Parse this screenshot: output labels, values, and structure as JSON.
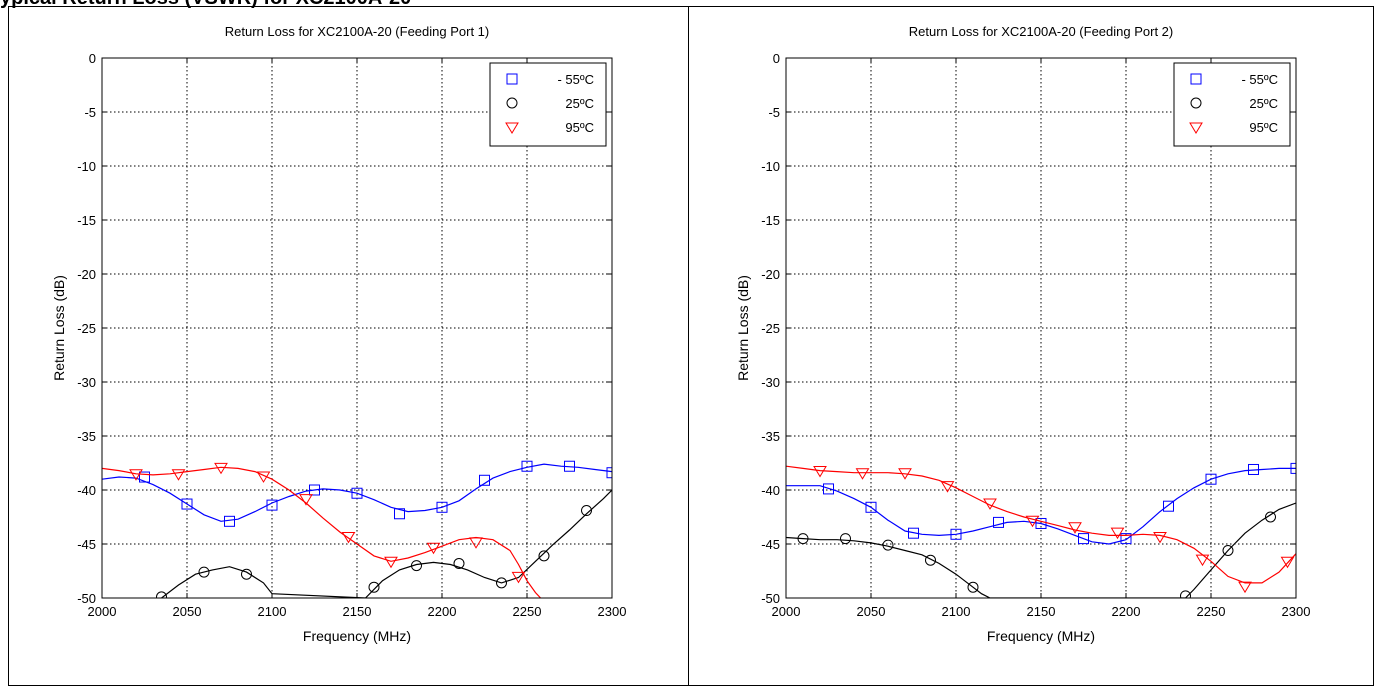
{
  "page": {
    "header_text": "ypical Return Loss (VSWR) for XC2100A-20"
  },
  "chart_data": [
    {
      "type": "line",
      "title": "Return Loss for XC2100A-20 (Feeding Port 1)",
      "xlabel": "Frequency (MHz)",
      "ylabel": "Return Loss (dB)",
      "xlim": [
        2000,
        2300
      ],
      "ylim": [
        -50,
        0
      ],
      "xticks": [
        2000,
        2050,
        2100,
        2150,
        2200,
        2250,
        2300
      ],
      "yticks": [
        0,
        -5,
        -10,
        -15,
        -20,
        -25,
        -30,
        -35,
        -40,
        -45,
        -50
      ],
      "grid": true,
      "legend_position": "top-right",
      "series": [
        {
          "name": "- 55ºC",
          "color": "#0000ff",
          "marker": "square",
          "x": [
            2000,
            2010,
            2020,
            2030,
            2040,
            2050,
            2060,
            2070,
            2080,
            2090,
            2100,
            2110,
            2120,
            2130,
            2140,
            2150,
            2160,
            2170,
            2180,
            2190,
            2200,
            2210,
            2220,
            2230,
            2240,
            2250,
            2260,
            2270,
            2280,
            2290,
            2300
          ],
          "y": [
            -39.0,
            -38.8,
            -38.9,
            -39.5,
            -40.3,
            -41.3,
            -42.3,
            -42.9,
            -42.7,
            -42.0,
            -41.2,
            -40.6,
            -40.1,
            -39.9,
            -40.0,
            -40.3,
            -40.9,
            -41.6,
            -42.0,
            -41.9,
            -41.6,
            -41.0,
            -39.9,
            -38.9,
            -38.3,
            -37.9,
            -37.6,
            -37.8,
            -37.9,
            -38.1,
            -38.3
          ],
          "markers_x": [
            2025,
            2050,
            2075,
            2100,
            2125,
            2150,
            2175,
            2200,
            2225,
            2250,
            2275,
            2300
          ],
          "markers_y": [
            -38.8,
            -41.3,
            -42.9,
            -41.4,
            -40.0,
            -40.3,
            -42.2,
            -41.6,
            -39.1,
            -37.8,
            -37.8,
            -38.4
          ]
        },
        {
          "name": "25ºC",
          "color": "#000000",
          "marker": "circle",
          "x": [
            2035,
            2045,
            2055,
            2065,
            2075,
            2085,
            2095,
            2100,
            2155,
            2165,
            2175,
            2185,
            2195,
            2205,
            2215,
            2225,
            2235,
            2245,
            2255,
            2265,
            2275,
            2285,
            2295,
            2300
          ],
          "y": [
            -50.0,
            -48.8,
            -47.8,
            -47.4,
            -47.1,
            -47.6,
            -48.6,
            -49.6,
            -50.0,
            -48.4,
            -47.4,
            -46.9,
            -46.7,
            -46.9,
            -47.4,
            -48.1,
            -48.6,
            -48.1,
            -46.6,
            -45.1,
            -43.7,
            -42.2,
            -40.8,
            -40.0
          ],
          "markers_x": [
            2035,
            2060,
            2085,
            2160,
            2185,
            2210,
            2235,
            2260,
            2285
          ],
          "markers_y": [
            -49.9,
            -47.6,
            -47.8,
            -49.0,
            -47.0,
            -46.8,
            -48.6,
            -46.1,
            -41.9
          ]
        },
        {
          "name": "95ºC",
          "color": "#ff0000",
          "marker": "triangle",
          "x": [
            2000,
            2010,
            2020,
            2030,
            2040,
            2050,
            2060,
            2070,
            2080,
            2090,
            2100,
            2110,
            2120,
            2130,
            2140,
            2150,
            2160,
            2170,
            2180,
            2190,
            2200,
            2210,
            2220,
            2230,
            2240,
            2245,
            2250,
            2255,
            2258
          ],
          "y": [
            -38.0,
            -38.2,
            -38.5,
            -38.6,
            -38.5,
            -38.3,
            -38.1,
            -37.9,
            -38.0,
            -38.3,
            -39.0,
            -40.0,
            -41.2,
            -42.6,
            -43.9,
            -45.0,
            -46.1,
            -46.6,
            -46.3,
            -45.8,
            -45.2,
            -44.6,
            -44.4,
            -44.6,
            -45.6,
            -46.9,
            -48.4,
            -49.5,
            -50.0
          ],
          "markers_x": [
            2020,
            2045,
            2070,
            2095,
            2120,
            2145,
            2170,
            2195,
            2220,
            2245
          ],
          "markers_y": [
            -38.5,
            -38.5,
            -37.9,
            -38.7,
            -40.8,
            -44.3,
            -46.6,
            -45.3,
            -44.8,
            -48.0
          ]
        }
      ]
    },
    {
      "type": "line",
      "title": "Return Loss for XC2100A-20 (Feeding Port 2)",
      "xlabel": "Frequency (MHz)",
      "ylabel": "Return Loss (dB)",
      "xlim": [
        2000,
        2300
      ],
      "ylim": [
        -50,
        0
      ],
      "xticks": [
        2000,
        2050,
        2100,
        2150,
        2200,
        2250,
        2300
      ],
      "yticks": [
        0,
        -5,
        -10,
        -15,
        -20,
        -25,
        -30,
        -35,
        -40,
        -45,
        -50
      ],
      "grid": true,
      "legend_position": "top-right",
      "series": [
        {
          "name": "- 55ºC",
          "color": "#0000ff",
          "marker": "square",
          "x": [
            2000,
            2010,
            2020,
            2030,
            2040,
            2050,
            2060,
            2070,
            2080,
            2090,
            2100,
            2110,
            2120,
            2130,
            2140,
            2150,
            2160,
            2170,
            2180,
            2190,
            2200,
            2210,
            2220,
            2230,
            2240,
            2250,
            2260,
            2270,
            2280,
            2290,
            2300
          ],
          "y": [
            -39.6,
            -39.6,
            -39.6,
            -40.1,
            -40.8,
            -41.6,
            -42.8,
            -43.8,
            -44.1,
            -44.2,
            -44.1,
            -43.8,
            -43.4,
            -43.0,
            -42.9,
            -43.1,
            -43.6,
            -44.2,
            -44.8,
            -45.0,
            -44.6,
            -43.4,
            -42.0,
            -40.8,
            -39.8,
            -39.0,
            -38.5,
            -38.2,
            -38.1,
            -38.0,
            -38.0
          ],
          "markers_x": [
            2025,
            2050,
            2075,
            2100,
            2125,
            2150,
            2175,
            2200,
            2225,
            2250,
            2275,
            2300
          ],
          "markers_y": [
            -39.9,
            -41.6,
            -44.0,
            -44.1,
            -43.0,
            -43.1,
            -44.5,
            -44.5,
            -41.5,
            -39.0,
            -38.1,
            -38.0
          ]
        },
        {
          "name": "25ºC",
          "color": "#000000",
          "marker": "circle",
          "x": [
            2000,
            2010,
            2020,
            2030,
            2040,
            2050,
            2060,
            2070,
            2080,
            2090,
            2100,
            2110,
            2115,
            2120,
            2235,
            2240,
            2250,
            2260,
            2270,
            2280,
            2290,
            2300
          ],
          "y": [
            -44.4,
            -44.5,
            -44.6,
            -44.6,
            -44.7,
            -44.9,
            -45.2,
            -45.6,
            -46.0,
            -46.8,
            -47.8,
            -49.0,
            -49.6,
            -50.0,
            -50.0,
            -49.2,
            -47.4,
            -45.6,
            -44.0,
            -42.8,
            -41.8,
            -41.2
          ],
          "markers_x": [
            2010,
            2035,
            2060,
            2085,
            2110,
            2235,
            2260,
            2285
          ],
          "markers_y": [
            -44.5,
            -44.5,
            -45.1,
            -46.5,
            -49.0,
            -49.8,
            -45.6,
            -42.5
          ]
        },
        {
          "name": "95ºC",
          "color": "#ff0000",
          "marker": "triangle",
          "x": [
            2000,
            2010,
            2020,
            2030,
            2040,
            2050,
            2060,
            2070,
            2080,
            2090,
            2100,
            2110,
            2120,
            2130,
            2140,
            2150,
            2160,
            2170,
            2180,
            2190,
            2200,
            2210,
            2220,
            2230,
            2240,
            2250,
            2260,
            2270,
            2280,
            2290,
            2300
          ],
          "y": [
            -37.8,
            -38.0,
            -38.2,
            -38.3,
            -38.4,
            -38.4,
            -38.4,
            -38.5,
            -38.7,
            -39.1,
            -39.8,
            -40.6,
            -41.4,
            -42.0,
            -42.5,
            -42.9,
            -43.3,
            -43.7,
            -44.0,
            -44.2,
            -44.2,
            -44.1,
            -44.2,
            -44.6,
            -45.4,
            -46.6,
            -48.0,
            -48.6,
            -48.6,
            -47.6,
            -45.9
          ],
          "markers_x": [
            2020,
            2045,
            2070,
            2095,
            2120,
            2145,
            2170,
            2195,
            2220,
            2245,
            2270,
            2295
          ],
          "markers_y": [
            -38.2,
            -38.4,
            -38.4,
            -39.6,
            -41.2,
            -42.8,
            -43.4,
            -43.9,
            -44.3,
            -46.4,
            -48.9,
            -46.6
          ]
        }
      ]
    }
  ]
}
